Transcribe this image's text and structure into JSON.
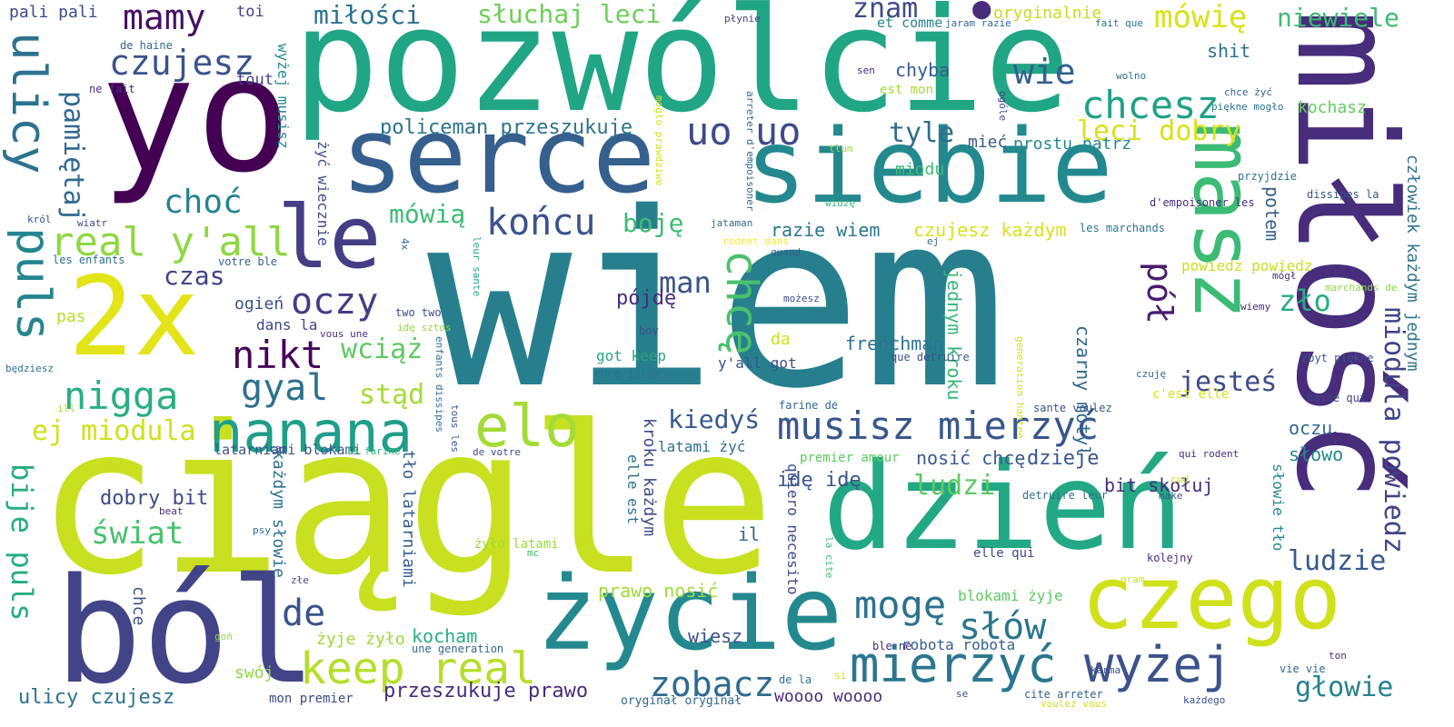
{
  "palette": {
    "background": "#ffffff",
    "c1": "#440154",
    "c2": "#46327e",
    "c3": "#365c8d",
    "c4": "#277f8e",
    "c5": "#1fa187",
    "c6": "#4ac16d",
    "c7": "#a0da39",
    "c8": "#d4e21a",
    "c9": "#fde725"
  },
  "words": {
    "wiem": "wiem",
    "ciagle": "ciągle",
    "pozwolcie": "pozwólcie",
    "yo": "yo",
    "milosc": "miłość",
    "serce": "serce",
    "siebie": "siebie",
    "dzien": "dzień",
    "zycie": "życie",
    "bol": "ból",
    "czego": "czego",
    "twox": "2x",
    "masz": "masz",
    "le": "le",
    "nanana": "nanana",
    "elo": "elo",
    "musisz_mierzyc": "musisz mierzyć",
    "mierzyc": "mierzyć",
    "wyzej": "wyżej",
    "keep_real": "keep real",
    "chcesz": "chcesz",
    "uo_uo": "uo uo",
    "mamy": "mamy",
    "czujesz": "czujesz",
    "ulicy": "ulicy",
    "puls": "puls",
    "real_yall": "real y'all",
    "nigga": "nigga",
    "oczy": "oczy",
    "nikt": "nikt",
    "gyal": "gyal",
    "chce_v": "chcę",
    "konca": "końcu",
    "mowia": "mówią",
    "moge": "mogę",
    "slow": "słów",
    "de": "de",
    "zobacz": "zobacz",
    "miodula_powiedz": "miodula powiedz",
    "glowie": "głowie",
    "ludzie": "ludzie",
    "zlo": "zło",
    "pol": "pół",
    "jestes": "jesteś",
    "wie": "wie",
    "mowie": "mówię",
    "niewiele": "niewiele",
    "leci_dobry": "leci dobry",
    "tyle": "tyle",
    "znam": "znam",
    "milosci": "miłości",
    "sluchaj_leci": "słuchaj leci",
    "pali_pali": "pali pali",
    "toi": "toi",
    "pamietaj": "pamiętaj",
    "choc": "choć",
    "czas": "czas",
    "bije_puls": "bije puls",
    "ej_miodula": "ej miodula",
    "swiat": "świat",
    "dobry_bit": "dobry bit",
    "stad": "stąd",
    "wciaz": "wciąż",
    "man": "man",
    "boje": "boję",
    "pojde": "pójdę",
    "kiedys": "kiedyś",
    "ludzi": "ludzi",
    "dzieje": "dzieje",
    "kochasz": "kochasz",
    "shit": "shit",
    "oryginalnie": "oryginalnie",
    "policeman_przeszukuje": "policeman przeszukuje",
    "miec": "mieć",
    "prostu_patrz": "prostu patrz",
    "miodu": "miodu",
    "chyba": "chyba",
    "razie_wiem": "razie wiem",
    "czujesz_kazdym": "czujesz każdym",
    "frenchman": "frenchman",
    "nosic_chce": "nosić chcę",
    "bit_skoluj": "bit skołuj",
    "slowo": "słowo",
    "oczu": "oczu",
    "jednym_kroku": "jednym kroku",
    "czarny_motyl": "czarny motyl",
    "potem": "potem",
    "czlowiek_kazdym_jednym": "człowiek każdym jednym",
    "powiedz_powiedz": "powiedz powiedz",
    "zyje_zylo": "żyje żyło",
    "przeszukuje_prawo": "przeszukuje prawo",
    "ulicy_czujesz": "ulicy czujesz",
    "kocham": "kocham",
    "wiesz": "wiesz",
    "woooo": "woooo woooo",
    "robota_robota": "robota robota",
    "blokami_zyje": "blokami żyje",
    "prawo_nosic": "prawo nosić",
    "idee": "idę idę",
    "latami_zyc": "latami żyć",
    "got_keep": "got keep",
    "yall_got": "y'all got",
    "da": "da",
    "ogien": "ogień",
    "dans_la": "dans la",
    "slowie_tlo": "słowie tło",
    "elle_qui": "elle qui",
    "wyzej_musisz": "wyżej musisz",
    "zyc_wiecznie": "żyć wiecznie",
    "kazdym_slowie": "każdym słowie",
    "tlo_latarniami": "tło latarniami",
    "kroku_kazdym": "kroku każdym",
    "elle_est": "elle est",
    "quiero": "quiero necesito",
    "latarniami_blokami": "latarniami blokami",
    "zylo_latami": "żyło latami",
    "chce_small": "chce",
    "il": "il",
    "swoj": "swój",
    "mon_premier": "mon premier",
    "original": "oryginał oryginał",
    "premier_amour": "premier amour",
    "pas": "pas",
    "tout": "tout",
    "ne_fait": "ne fait",
    "de_haine": "de haine",
    "et_comme": "et comme",
    "est_mon": "est mon",
    "jaram_razie": "jaram razie",
    "fait_que": "fait que",
    "plynie": "płynie",
    "sen": "sen",
    "wolno": "wolno",
    "chce_zyc": "chce żyć",
    "piekne_moglo": "piękne mogło",
    "przyjdzie": "przyjdzie",
    "dissipes_la": "dissipes la",
    "d_empoisoner_les": "d'empoisoner les",
    "les_marchands": "les marchands",
    "krol": "król",
    "wiatr": "wiatr",
    "les_enfants": "les enfants",
    "votre_ble": "votre ble",
    "jataman": "jataman",
    "rodent_dans": "rodent dans",
    "quand": "quand",
    "mozesz": "możesz",
    "ej": "ej",
    "leur_sante": "leur sante",
    "fourx": "4x",
    "two_two": "two two",
    "ide_sztos": "idę sztos",
    "vous_une": "vous une",
    "boy": "boy",
    "chce_jaram": "chcę jaram",
    "que_detruire": "que detruire",
    "generation_hantee": "generation hantee",
    "c_est_elle": "c'est elle",
    "czuje": "czuję",
    "haine_qui": "haine qui",
    "lez": "łez",
    "zbyt_piekne": "zbyt piękne",
    "wiemy": "wiemy",
    "mogl": "mógł",
    "marchands_de": "marchands de",
    "bedziesz": "będziesz",
    "ill": "ill",
    "raz": "raz",
    "la_farine": "la farine",
    "de_votre": "de votre",
    "farine_de": "farine de",
    "enfants_dissipes": "enfants dissipes",
    "tous_les": "tous les",
    "sante_voulez": "sante voulez",
    "qui_rodent": "qui rodent",
    "cud": "cud",
    "make": "make",
    "detruire_leur": "detruire leur",
    "beat": "beat",
    "psy": "psy",
    "mc": "mc",
    "zle": "złe",
    "gon": "goń",
    "une_generation": "une generation",
    "ble_ne": "ble ne",
    "la_cite": "la cite",
    "gram": "gram",
    "kolejny": "kolejny",
    "karma": "karma",
    "ton": "ton",
    "vie_vie": "vie vie",
    "cite_arreter": "cite arreter",
    "voulez_vous": "voulez vous",
    "kazdego": "każdego",
    "se": "se",
    "si": "si",
    "de_la": "de la",
    "widze": "widzę",
    "tlum": "tłum",
    "ogole": "ogóle",
    "arreter_d": "arreter d'empoisoner",
    "moglo_prawdziwe": "mogło prawdziwe"
  }
}
